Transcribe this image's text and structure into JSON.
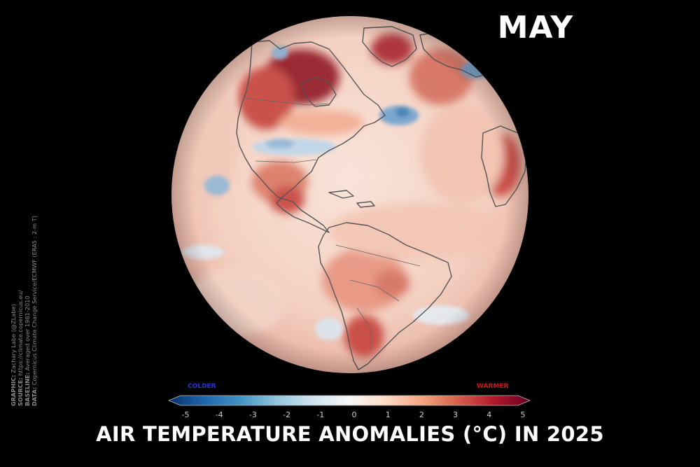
{
  "month": "MAY",
  "title": "AIR TEMPERATURE ANOMALIES (°C) IN 2025",
  "legend": {
    "colder_label": "COLDER",
    "warmer_label": "WARMER",
    "ticks": [
      "-5",
      "-4",
      "-3",
      "-2",
      "-1",
      "0",
      "1",
      "2",
      "3",
      "4",
      "5"
    ],
    "range": [
      -5,
      5
    ],
    "colors": [
      "#08306b",
      "#2166ac",
      "#4393c3",
      "#92c5de",
      "#d1e5f0",
      "#f7f7f7",
      "#fddbc7",
      "#f4a582",
      "#d6604d",
      "#b2182b",
      "#67001f"
    ]
  },
  "credits": {
    "graphic_key": "GRAPHIC:",
    "graphic_value": " Zachary Labe (@ZLabe)",
    "source_key": "SOURCE:",
    "source_value": " https://climate.copernicus.eu/",
    "baseline_key": "BASELINE:",
    "baseline_value": " Averaged over 1981-2010",
    "data_key": "DATA:",
    "data_value": " Copernicus Climate Change Service/ECMWF (ERA5 : 2-m T)"
  },
  "map": {
    "view": "orthographic globe centered on the Americas",
    "colors": {
      "background": "#000000",
      "ocean_base": "#f6d9cc",
      "warm": "#c23a34",
      "very_warm": "#8b0d1e",
      "cool": "#8fb8d8",
      "cold": "#3d7fb5",
      "coastline": "#555555"
    }
  }
}
